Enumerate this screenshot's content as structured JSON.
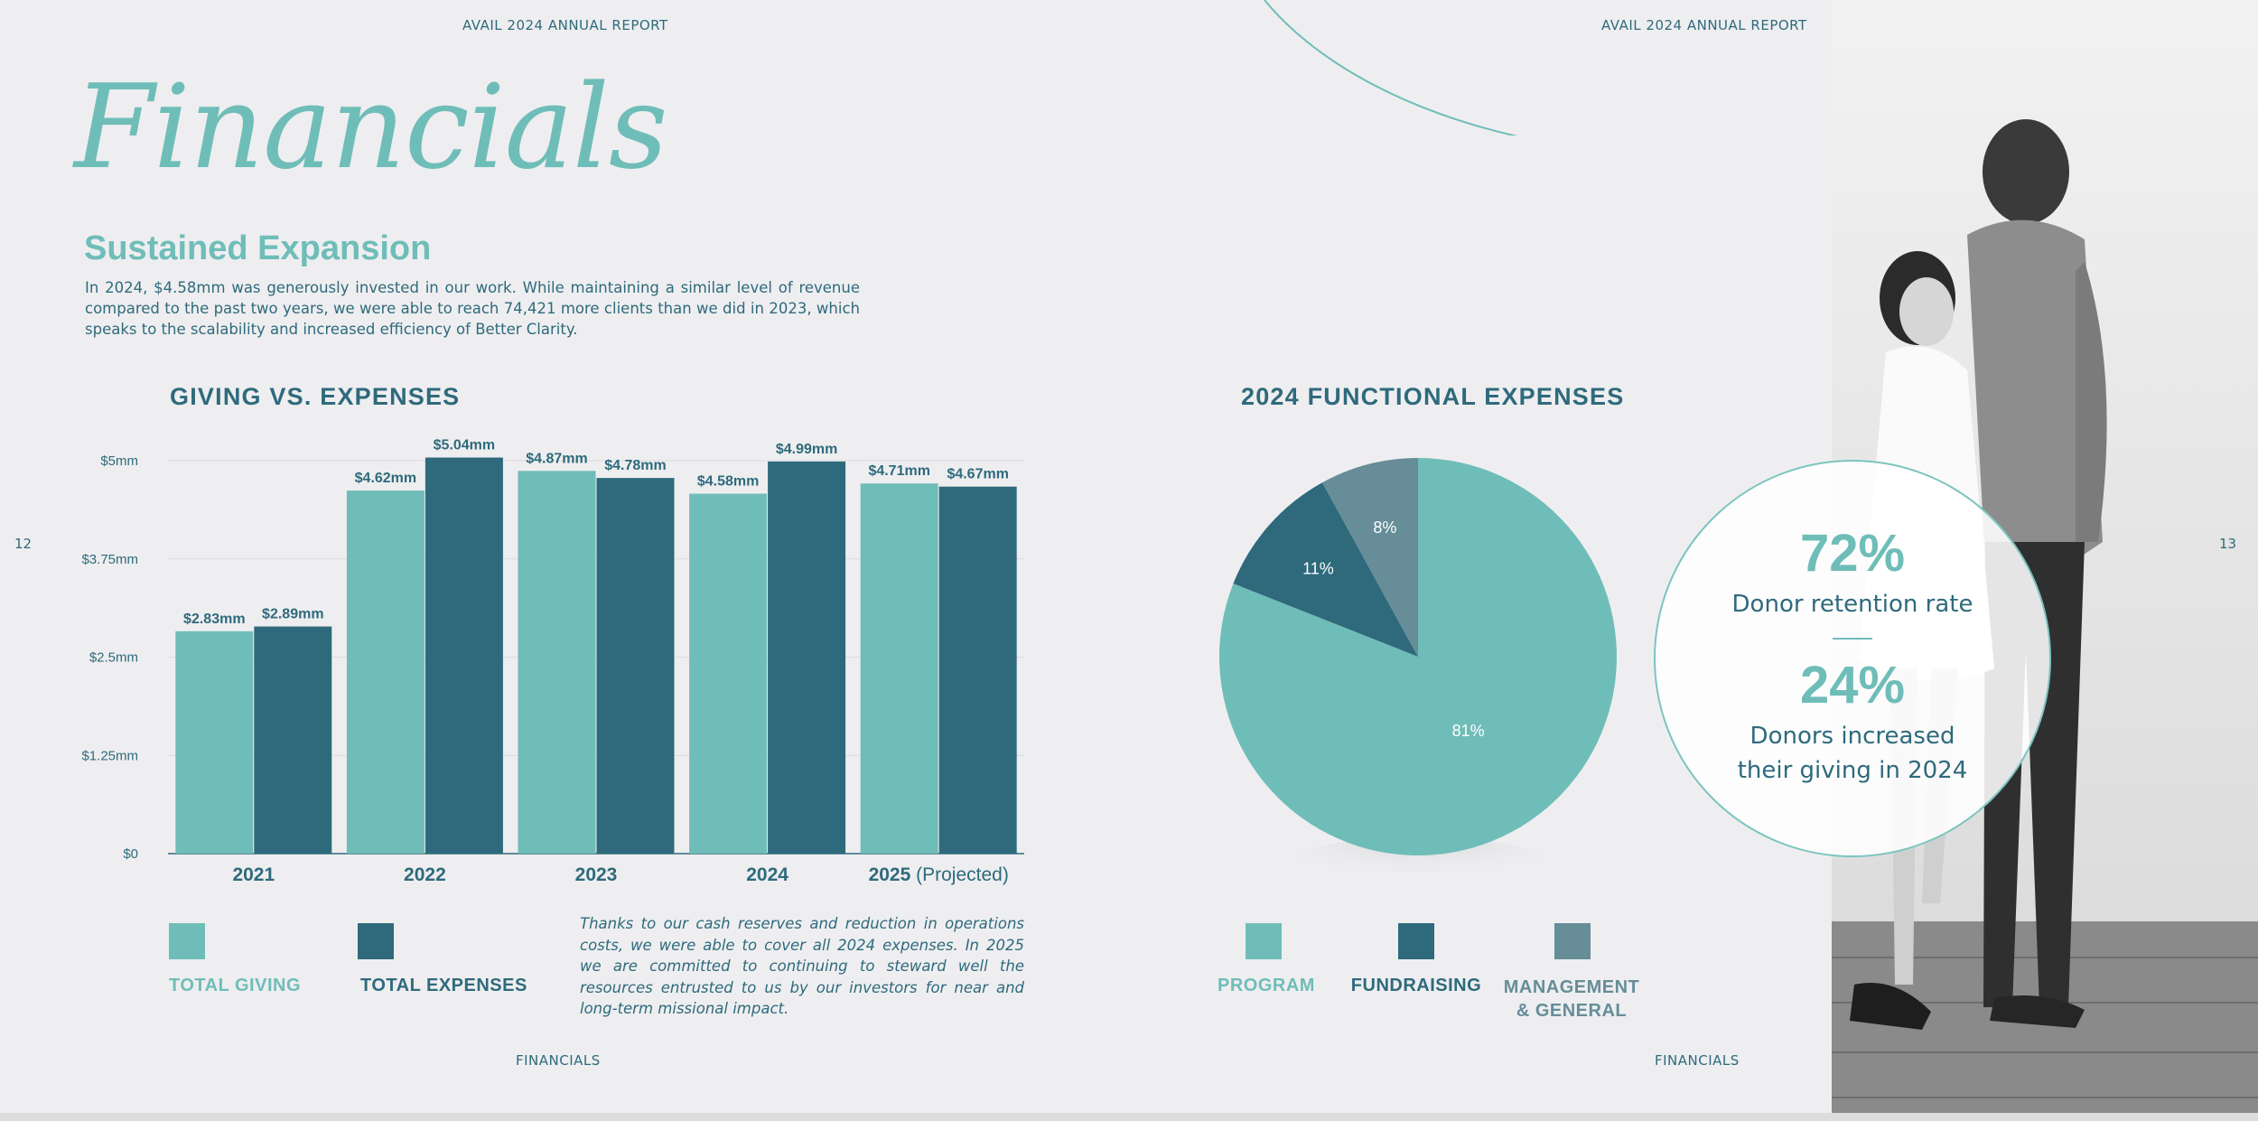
{
  "header": {
    "left": "AVAIL 2024 ANNUAL REPORT",
    "right": "AVAIL 2024 ANNUAL REPORT"
  },
  "page_numbers": {
    "left": "12",
    "right": "13"
  },
  "title": "Financials",
  "subtitle": "Sustained Expansion",
  "intro": "In 2024, $4.58mm was generously invested in our work. While maintaining a similar level of revenue compared to the past two years, we were able to reach 74,421 more clients than we did in 2023, which speaks to the scalability and increased efficiency of Better Clarity.",
  "bar_section_title": "GIVING VS. EXPENSES",
  "pie_section_title": "2024 FUNCTIONAL EXPENSES",
  "bar_legend": [
    {
      "label": "TOTAL GIVING",
      "color": "#6fbdb8"
    },
    {
      "label": "TOTAL EXPENSES",
      "color": "#2e6a7c"
    }
  ],
  "pie_legend": [
    {
      "label": "PROGRAM",
      "color": "#6fbdb8"
    },
    {
      "label": "FUNDRAISING",
      "color": "#2e6a7c"
    },
    {
      "label_line1": "MANAGEMENT",
      "label_line2": "& GENERAL",
      "color": "#668d98"
    }
  ],
  "note": "Thanks to our cash reserves and reduction in operations costs, we were able to cover all 2024 expenses. In 2025 we are committed to continuing to steward well the resources entrusted to us by our investors for near and long-term missional impact.",
  "stats": {
    "stat1_value": "72%",
    "stat1_label": "Donor retention rate",
    "stat2_value": "24%",
    "stat2_line1": "Donors increased",
    "stat2_line2": "their giving in 2024"
  },
  "footer": {
    "left": "FINANCIALS",
    "right": "FINANCIALS"
  },
  "chart_data": [
    {
      "type": "bar",
      "title": "GIVING VS. EXPENSES",
      "categories": [
        "2021",
        "2022",
        "2023",
        "2024",
        "2025"
      ],
      "category_suffix": [
        "",
        "",
        "",
        "",
        " (Projected)"
      ],
      "series": [
        {
          "name": "TOTAL GIVING",
          "color": "#6fbdb8",
          "values": [
            2.83,
            4.62,
            4.87,
            4.58,
            4.71
          ],
          "labels": [
            "$2.83mm",
            "$4.62mm",
            "$4.87mm",
            "$4.58mm",
            "$4.71mm"
          ]
        },
        {
          "name": "TOTAL EXPENSES",
          "color": "#2e6a7c",
          "values": [
            2.89,
            5.04,
            4.78,
            4.99,
            4.67
          ],
          "labels": [
            "$2.89mm",
            "$5.04mm",
            "$4.78mm",
            "$4.99mm",
            "$4.67mm"
          ]
        }
      ],
      "yticks": [
        0,
        1.25,
        2.5,
        3.75,
        5
      ],
      "ytick_labels": [
        "$0",
        "$1.25mm",
        "$2.5mm",
        "$3.75mm",
        "$5mm"
      ],
      "ylim": [
        0,
        5
      ],
      "grid": true
    },
    {
      "type": "pie",
      "title": "2024 FUNCTIONAL EXPENSES",
      "slices": [
        {
          "name": "PROGRAM",
          "value": 81,
          "label": "81%",
          "color": "#6fbdb8"
        },
        {
          "name": "FUNDRAISING",
          "value": 11,
          "label": "11%",
          "color": "#2e6a7c"
        },
        {
          "name": "MANAGEMENT & GENERAL",
          "value": 8,
          "label": "8%",
          "color": "#668d98"
        }
      ]
    }
  ]
}
